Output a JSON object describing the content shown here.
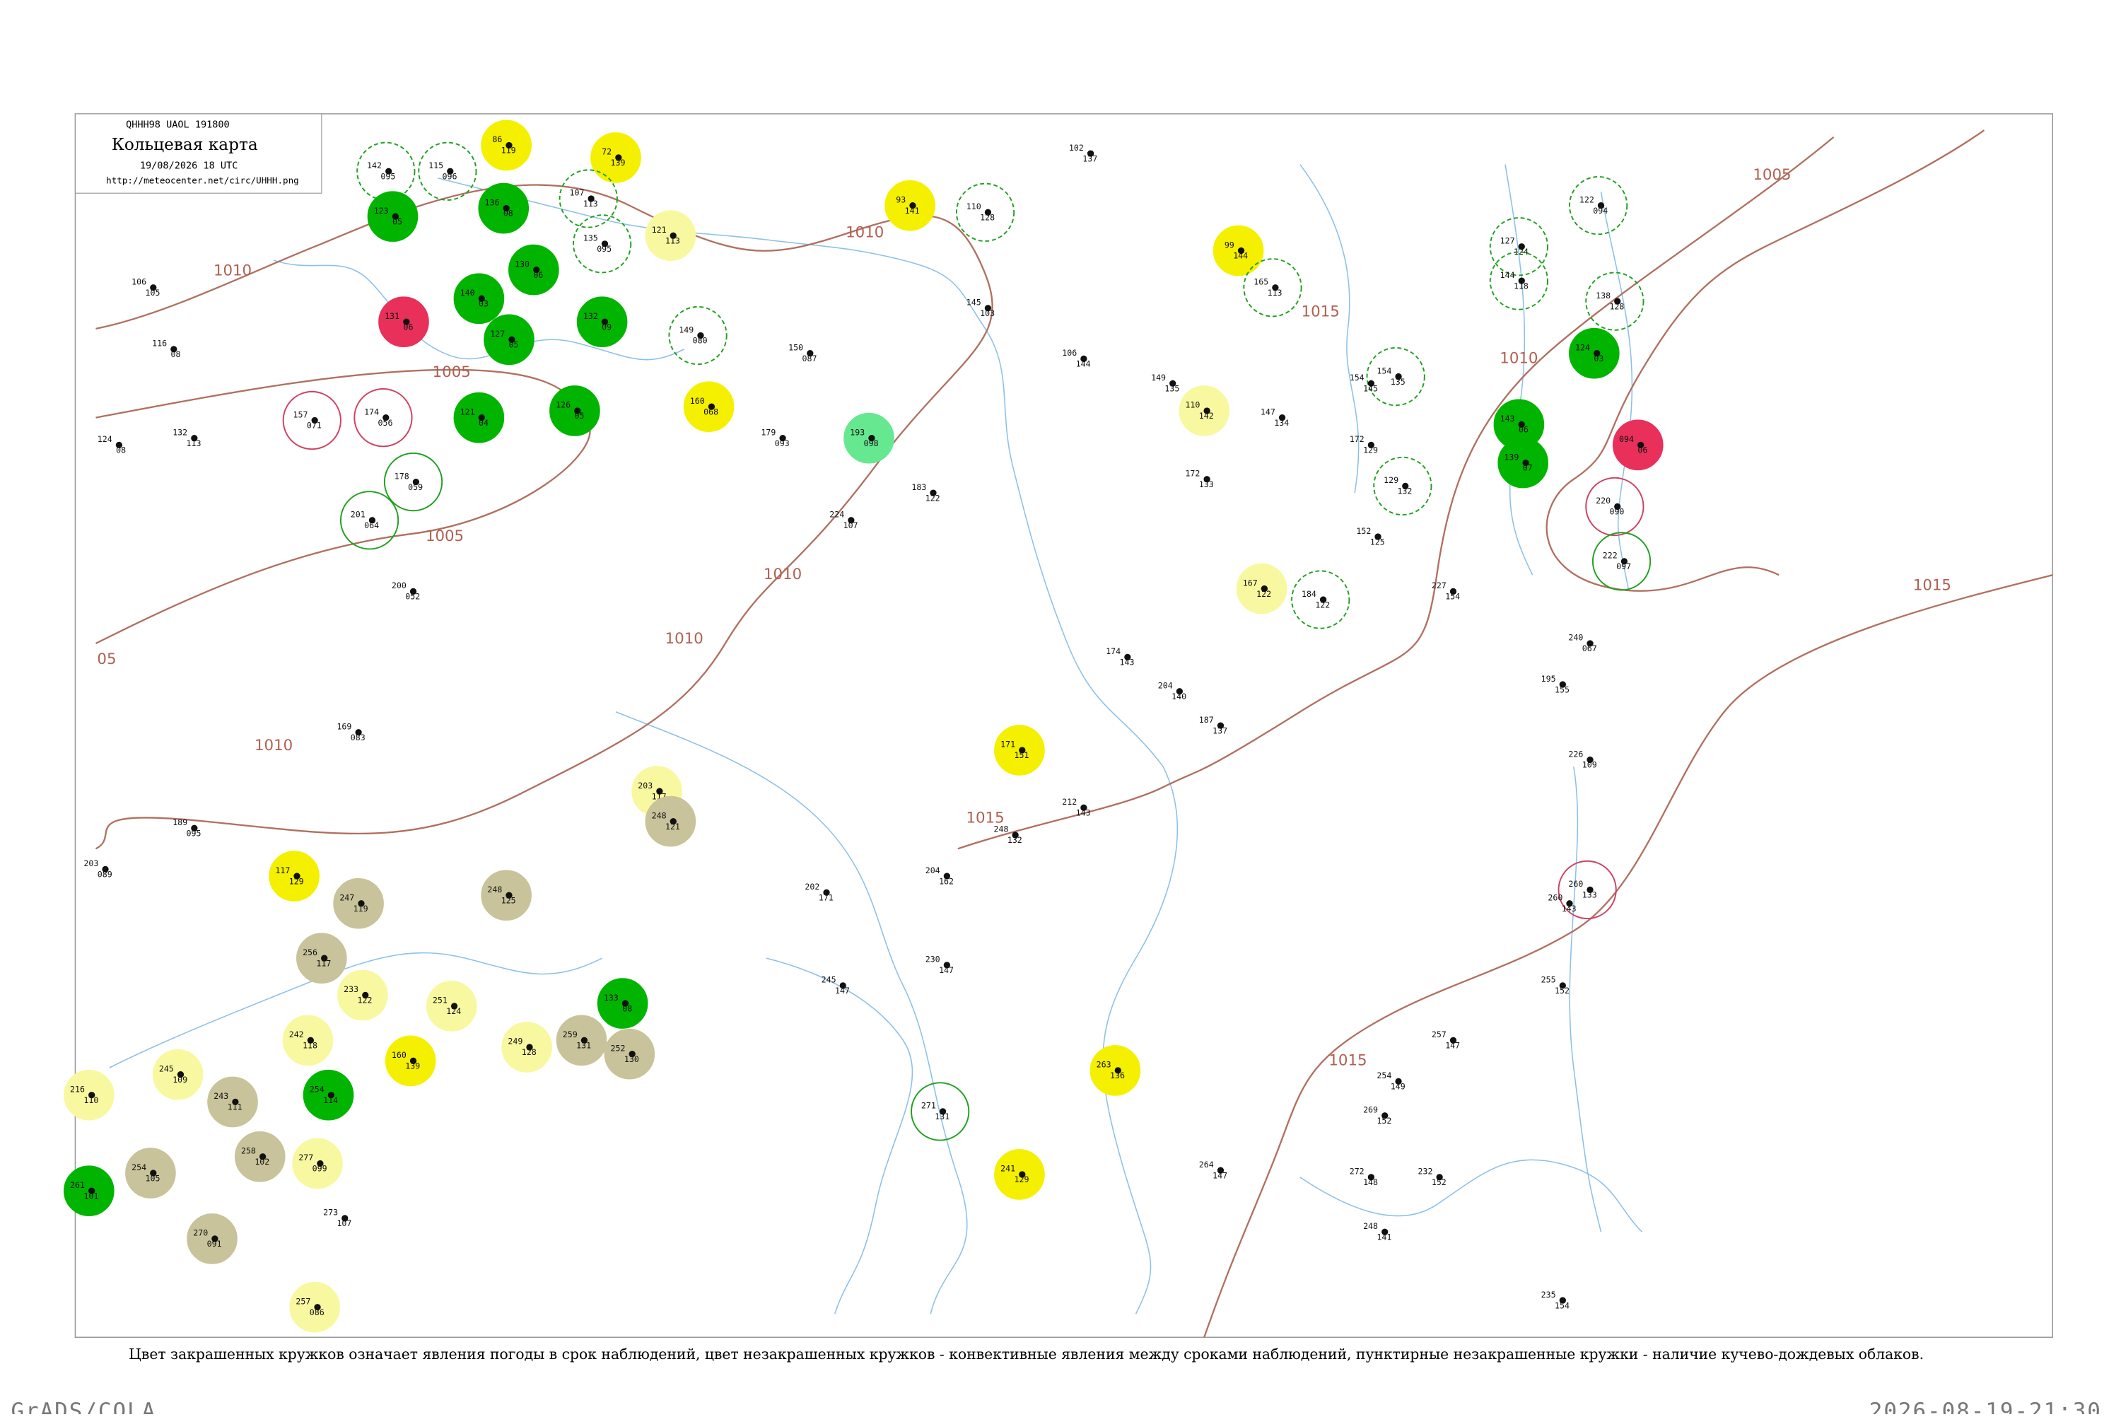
{
  "header": {
    "code": "QHHH98 UAOL 191800",
    "title": "Кольцевая карта",
    "date": "19/08/2026 18 UTC",
    "url": "http://meteocenter.net/circ/UHHH.png"
  },
  "isobars": [
    {
      "label": "1010"
    },
    {
      "label": "1010"
    },
    {
      "label": "1010"
    },
    {
      "label": "1010"
    },
    {
      "label": "1010"
    },
    {
      "label": "1005"
    },
    {
      "label": "1005"
    },
    {
      "label": "05"
    },
    {
      "label": "1005"
    },
    {
      "label": "1010"
    },
    {
      "label": "1015"
    },
    {
      "label": "1015"
    },
    {
      "label": "1015"
    },
    {
      "label": "1015"
    }
  ],
  "stations": [
    {
      "values": [
        "123",
        "05"
      ],
      "fill": "#00b400"
    },
    {
      "values": [
        "136",
        "08"
      ],
      "fill": "#00b400"
    },
    {
      "values": [
        "131",
        "06"
      ],
      "fill": "#e8305a"
    },
    {
      "values": [
        "140",
        "03"
      ],
      "fill": "#00b400"
    },
    {
      "values": [
        "127",
        "05"
      ],
      "fill": "#00b400"
    },
    {
      "values": [
        "130",
        "06"
      ],
      "fill": "#00b400"
    },
    {
      "values": [
        "132",
        "09"
      ],
      "fill": "#00b400"
    },
    {
      "values": [
        "121",
        "04"
      ],
      "fill": "#00b400"
    },
    {
      "values": [
        "126",
        "05"
      ],
      "fill": "#00b400"
    },
    {
      "values": [
        "86",
        "119"
      ],
      "fill": "#f5f000"
    },
    {
      "values": [
        "72",
        "139"
      ],
      "fill": "#f5f000"
    },
    {
      "values": [
        "121",
        "113"
      ],
      "fill": "#f8f8a0"
    },
    {
      "values": [
        "93",
        "141"
      ],
      "fill": "#f5f000"
    },
    {
      "values": [
        "160",
        "068"
      ],
      "fill": "#f5f000"
    },
    {
      "values": [
        "193",
        "098"
      ],
      "fill": "#66e890"
    },
    {
      "values": [
        "99",
        "144"
      ],
      "fill": "#f5f000"
    },
    {
      "values": [
        "124",
        "03"
      ],
      "fill": "#00b400"
    },
    {
      "values": [
        "143",
        "06"
      ],
      "fill": "#00b400"
    },
    {
      "values": [
        "139",
        "07"
      ],
      "fill": "#00b400"
    },
    {
      "values": [
        "094",
        "06"
      ],
      "fill": "#e8305a"
    },
    {
      "values": [
        "171",
        "151"
      ],
      "fill": "#f5f000"
    },
    {
      "values": [
        "117",
        "129"
      ],
      "fill": "#f5f000"
    },
    {
      "values": [
        "256",
        "117"
      ],
      "fill": "#c8c39a"
    },
    {
      "values": [
        "203",
        "117"
      ],
      "fill": "#f8f8a0"
    },
    {
      "values": [
        "248",
        "121"
      ],
      "fill": "#c8c39a"
    },
    {
      "values": [
        "247",
        "119"
      ],
      "fill": "#c8c39a"
    },
    {
      "values": [
        "248",
        "125"
      ],
      "fill": "#c8c39a"
    },
    {
      "values": [
        "259",
        "131"
      ],
      "fill": "#c8c39a"
    },
    {
      "values": [
        "133",
        "08"
      ],
      "fill": "#00b400"
    },
    {
      "values": [
        "252",
        "130"
      ],
      "fill": "#c8c39a"
    },
    {
      "values": [
        "254",
        "114"
      ],
      "fill": "#00b400"
    },
    {
      "values": [
        "243",
        "111"
      ],
      "fill": "#c8c39a"
    },
    {
      "values": [
        "258",
        "102"
      ],
      "fill": "#c8c39a"
    },
    {
      "values": [
        "270",
        "091"
      ],
      "fill": "#c8c39a"
    },
    {
      "values": [
        "254",
        "105"
      ],
      "fill": "#c8c39a"
    },
    {
      "values": [
        "261",
        "101"
      ],
      "fill": "#00b400"
    },
    {
      "values": [
        "216",
        "110"
      ],
      "fill": "#f8f8a0"
    },
    {
      "values": [
        "257",
        "086"
      ],
      "fill": "#f8f8a0"
    },
    {
      "values": [
        "263",
        "136"
      ],
      "fill": "#f5f000"
    },
    {
      "values": [
        "241",
        "129"
      ],
      "fill": "#f5f000"
    },
    {
      "values": [
        "167",
        "122"
      ],
      "fill": "#f8f8a0"
    },
    {
      "values": [
        "110",
        "142"
      ],
      "fill": "#f8f8a0"
    },
    {
      "values": [
        "160",
        "139"
      ],
      "fill": "#f5f000"
    },
    {
      "values": [
        "249",
        "128"
      ],
      "fill": "#f8f8a0"
    },
    {
      "values": [
        "277",
        "099"
      ],
      "fill": "#f8f8a0"
    },
    {
      "values": [
        "233",
        "122"
      ],
      "fill": "#f8f8a0"
    },
    {
      "values": [
        "251",
        "124"
      ],
      "fill": "#f8f8a0"
    },
    {
      "values": [
        "242",
        "118"
      ],
      "fill": "#f8f8a0"
    },
    {
      "values": [
        "245",
        "109"
      ],
      "fill": "#f8f8a0"
    }
  ],
  "rings": [
    {
      "values": [
        "157",
        "071"
      ],
      "color": "#d04060",
      "style": "solid"
    },
    {
      "values": [
        "174",
        "056"
      ],
      "color": "#d04060",
      "style": "solid"
    },
    {
      "values": [
        "260",
        "133"
      ],
      "color": "#d04060",
      "style": "solid"
    },
    {
      "values": [
        "220",
        "090"
      ],
      "color": "#d04060",
      "style": "solid"
    },
    {
      "values": [
        "201",
        "064"
      ],
      "color": "#20a020",
      "style": "solid"
    },
    {
      "values": [
        "178",
        "059"
      ],
      "color": "#20a020",
      "style": "solid"
    },
    {
      "values": [
        "271",
        "131"
      ],
      "color": "#20a020",
      "style": "solid"
    },
    {
      "values": [
        "222",
        "097"
      ],
      "color": "#20a020",
      "style": "solid"
    },
    {
      "values": [
        "142",
        "095"
      ],
      "color": "#20a020",
      "style": "dashed"
    },
    {
      "values": [
        "115",
        "096"
      ],
      "color": "#20a020",
      "style": "dashed"
    },
    {
      "values": [
        "107",
        "113"
      ],
      "color": "#20a020",
      "style": "dashed"
    },
    {
      "values": [
        "135",
        "095"
      ],
      "color": "#20a020",
      "style": "dashed"
    },
    {
      "values": [
        "149",
        "080"
      ],
      "color": "#20a020",
      "style": "dashed"
    },
    {
      "values": [
        "110",
        "128"
      ],
      "color": "#20a020",
      "style": "dashed"
    },
    {
      "values": [
        "165",
        "113"
      ],
      "color": "#20a020",
      "style": "dashed"
    },
    {
      "values": [
        "154",
        "135"
      ],
      "color": "#20a020",
      "style": "dashed"
    },
    {
      "values": [
        "129",
        "132"
      ],
      "color": "#20a020",
      "style": "dashed"
    },
    {
      "values": [
        "184",
        "122"
      ],
      "color": "#20a020",
      "style": "dashed"
    },
    {
      "values": [
        "127",
        "124"
      ],
      "color": "#20a020",
      "style": "dashed"
    },
    {
      "values": [
        "144",
        "118"
      ],
      "color": "#20a020",
      "style": "dashed"
    },
    {
      "values": [
        "122",
        "094"
      ],
      "color": "#20a020",
      "style": "dashed"
    },
    {
      "values": [
        "138",
        "128"
      ],
      "color": "#20a020",
      "style": "dashed"
    }
  ],
  "points": [
    {
      "values": [
        "106",
        "105"
      ]
    },
    {
      "values": [
        "116",
        "08"
      ]
    },
    {
      "values": [
        "124",
        "08"
      ]
    },
    {
      "values": [
        "132",
        "113"
      ]
    },
    {
      "values": [
        "200",
        "052"
      ]
    },
    {
      "values": [
        "169",
        "083"
      ]
    },
    {
      "values": [
        "203",
        "089"
      ]
    },
    {
      "values": [
        "189",
        "095"
      ]
    },
    {
      "values": [
        "150",
        "087"
      ]
    },
    {
      "values": [
        "179",
        "093"
      ]
    },
    {
      "values": [
        "224",
        "107"
      ]
    },
    {
      "values": [
        "183",
        "122"
      ]
    },
    {
      "values": [
        "145",
        "103"
      ]
    },
    {
      "values": [
        "102",
        "137"
      ]
    },
    {
      "values": [
        "106",
        "144"
      ]
    },
    {
      "values": [
        "149",
        "135"
      ]
    },
    {
      "values": [
        "172",
        "133"
      ]
    },
    {
      "values": [
        "147",
        "134"
      ]
    },
    {
      "values": [
        "154",
        "145"
      ]
    },
    {
      "values": [
        "172",
        "129"
      ]
    },
    {
      "values": [
        "152",
        "125"
      ]
    },
    {
      "values": [
        "227",
        "154"
      ]
    },
    {
      "values": [
        "240",
        "067"
      ]
    },
    {
      "values": [
        "195",
        "155"
      ]
    },
    {
      "values": [
        "260",
        "143"
      ]
    },
    {
      "values": [
        "255",
        "152"
      ]
    },
    {
      "values": [
        "257",
        "147"
      ]
    },
    {
      "values": [
        "254",
        "149"
      ]
    },
    {
      "values": [
        "269",
        "152"
      ]
    },
    {
      "values": [
        "232",
        "152"
      ]
    },
    {
      "values": [
        "248",
        "141"
      ]
    },
    {
      "values": [
        "235",
        "154"
      ]
    },
    {
      "values": [
        "202",
        "171"
      ]
    },
    {
      "values": [
        "245",
        "147"
      ]
    },
    {
      "values": [
        "204",
        "162"
      ]
    },
    {
      "values": [
        "230",
        "147"
      ]
    },
    {
      "values": [
        "174",
        "143"
      ]
    },
    {
      "values": [
        "204",
        "140"
      ]
    },
    {
      "values": [
        "187",
        "137"
      ]
    },
    {
      "values": [
        "212",
        "143"
      ]
    },
    {
      "values": [
        "248",
        "132"
      ]
    },
    {
      "values": [
        "226",
        "109"
      ]
    },
    {
      "values": [
        "272",
        "148"
      ]
    },
    {
      "values": [
        "273",
        "107"
      ]
    },
    {
      "values": [
        "264",
        "147"
      ]
    }
  ],
  "caption": "Цвет закрашенных кружков означает явления погоды в срок наблюдений, цвет незакрашенных кружков - конвективные явления между сроками наблюдений, пунктирные незакрашенные кружки - наличие кучево-дождевых облаков.",
  "footer": {
    "left": "GrADS/COLA",
    "right": "2026-08-19-21:30"
  }
}
